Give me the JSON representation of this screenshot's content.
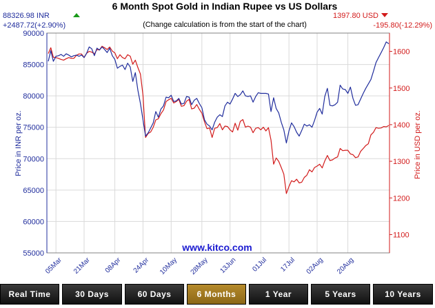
{
  "chart_data": {
    "type": "line",
    "title": "6 Month Spot Gold in Indian Rupee vs US Dollars",
    "subtitle": "(Change calculation is from the start of the chart)",
    "left_axis": {
      "label": "Price in INR per oz.",
      "ticks": [
        "90000",
        "85000",
        "80000",
        "75000",
        "70000",
        "65000",
        "60000",
        "55000"
      ],
      "ylim": [
        55000,
        90000
      ],
      "current_value": "88326.98 INR",
      "change": "+2487.72(+2.90%)"
    },
    "right_axis": {
      "label": "Price in USD per oz.",
      "ticks": [
        "1600",
        "1500",
        "1400",
        "1300",
        "1200",
        "1100"
      ],
      "ylim": [
        1050,
        1650
      ],
      "current_value": "1397.80 USD",
      "change": "-195.80(-12.29%)"
    },
    "x_ticks": [
      "05Mar",
      "21Mar",
      "08Apr",
      "24Apr",
      "10May",
      "28May",
      "13Jun",
      "01Jul",
      "17Jul",
      "02Aug",
      "20Aug"
    ],
    "x_ticks_at_index": [
      3,
      14,
      26,
      37,
      48,
      60,
      71,
      83,
      94,
      105,
      117
    ],
    "grid": true,
    "watermark": "www.kitco.com",
    "series": [
      {
        "name": "INR",
        "color": "#1f2c9c",
        "values": [
          85500,
          87200,
          85500,
          86300,
          86400,
          86600,
          86300,
          86700,
          86500,
          86200,
          86400,
          86500,
          86300,
          86500,
          86100,
          86800,
          87800,
          87500,
          86400,
          87600,
          87300,
          87800,
          87400,
          86900,
          87600,
          86400,
          85800,
          84400,
          84700,
          84900,
          84200,
          85200,
          84600,
          82300,
          83700,
          80900,
          78800,
          76200,
          73600,
          74100,
          74900,
          75700,
          77500,
          76600,
          77900,
          78400,
          79800,
          79700,
          80100,
          79100,
          79200,
          79600,
          78700,
          78800,
          79900,
          79800,
          78600,
          79300,
          79600,
          78800,
          78100,
          76200,
          75500,
          75200,
          74600,
          75800,
          76600,
          77000,
          76700,
          78400,
          79000,
          78700,
          79500,
          80400,
          79900,
          80200,
          80800,
          80000,
          79900,
          80000,
          79000,
          79900,
          80500,
          80400,
          80400,
          80400,
          80300,
          77500,
          79700,
          78000,
          77300,
          75800,
          74600,
          72500,
          74400,
          75700,
          75100,
          74200,
          73600,
          74500,
          75500,
          75200,
          75400,
          75000,
          76100,
          77400,
          78000,
          77100,
          79900,
          81200,
          78500,
          78400,
          78600,
          79000,
          81700,
          81100,
          81000,
          80400,
          81400,
          79600,
          78500,
          78600,
          79500,
          80400,
          81200,
          81900,
          82600,
          83900,
          85300,
          86100,
          86900,
          87700,
          88600,
          88300
        ]
      },
      {
        "name": "USD",
        "color": "#d21a1a",
        "values": [
          1594,
          1610,
          1584,
          1583,
          1581,
          1578,
          1576,
          1580,
          1583,
          1581,
          1581,
          1589,
          1593,
          1593,
          1583,
          1595,
          1600,
          1598,
          1593,
          1605,
          1604,
          1614,
          1610,
          1605,
          1612,
          1601,
          1596,
          1580,
          1591,
          1583,
          1580,
          1591,
          1587,
          1565,
          1576,
          1556,
          1538,
          1481,
          1365,
          1376,
          1380,
          1393,
          1413,
          1416,
          1430,
          1440,
          1463,
          1468,
          1472,
          1459,
          1463,
          1469,
          1450,
          1452,
          1464,
          1469,
          1443,
          1445,
          1455,
          1442,
          1431,
          1408,
          1389,
          1391,
          1365,
          1390,
          1392,
          1403,
          1386,
          1396,
          1395,
          1386,
          1380,
          1404,
          1385,
          1409,
          1414,
          1393,
          1396,
          1393,
          1378,
          1390,
          1392,
          1386,
          1393,
          1383,
          1392,
          1358,
          1292,
          1309,
          1300,
          1283,
          1265,
          1212,
          1231,
          1247,
          1244,
          1251,
          1241,
          1243,
          1256,
          1262,
          1277,
          1271,
          1283,
          1287,
          1292,
          1282,
          1301,
          1316,
          1302,
          1304,
          1309,
          1312,
          1335,
          1329,
          1330,
          1330,
          1320,
          1318,
          1310,
          1312,
          1327,
          1335,
          1343,
          1348,
          1372,
          1379,
          1392,
          1390,
          1391,
          1395,
          1394,
          1398
        ]
      }
    ]
  },
  "arrows": {
    "up_color": "#1a9a1a",
    "down_color": "#d21a1a"
  },
  "buttons": [
    {
      "label": "Real Time",
      "active": false
    },
    {
      "label": "30 Days",
      "active": false
    },
    {
      "label": "60 Days",
      "active": false
    },
    {
      "label": "6 Months",
      "active": true
    },
    {
      "label": "1 Year",
      "active": false
    },
    {
      "label": "5 Years",
      "active": false
    },
    {
      "label": "10 Years",
      "active": false
    }
  ]
}
